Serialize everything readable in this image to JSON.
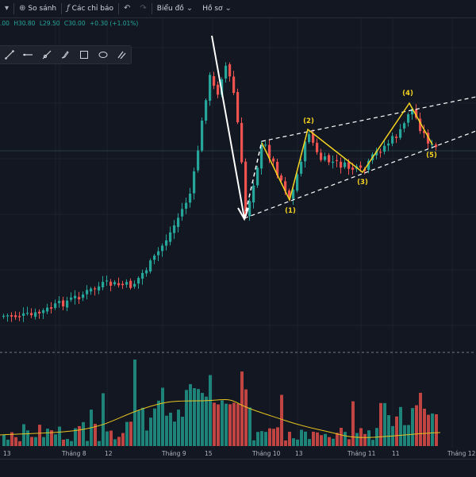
{
  "toolbar": {
    "compare": "So sánh",
    "indicators": "Các chỉ báo",
    "chart_type": "Biểu đồ",
    "profile": "Hồ sơ"
  },
  "ohlc": {
    "open": ".00",
    "high": "H30.80",
    "low": "L29.50",
    "close": "C30.00",
    "change": "+0.30 (+1.01%)"
  },
  "drawing_tools": [
    "trend-line-icon",
    "horizontal-line-icon",
    "ray-icon",
    "brush-icon",
    "rectangle-icon",
    "ellipse-icon",
    "magnet-icon"
  ],
  "colors": {
    "background": "#131722",
    "up": "#26a69a",
    "down": "#ef5350",
    "wave": "#f5d320",
    "volume_ma": "#e6c420",
    "channel": "#ffffff"
  },
  "x_axis_labels": [
    "13",
    "Tháng 8",
    "12",
    "Tháng 9",
    "15",
    "Tháng 10",
    "13",
    "Tháng 11",
    "11",
    "Tháng 12"
  ],
  "wave_labels": [
    "(1)",
    "(2)",
    "(3)",
    "(4)",
    "(5)"
  ]
}
